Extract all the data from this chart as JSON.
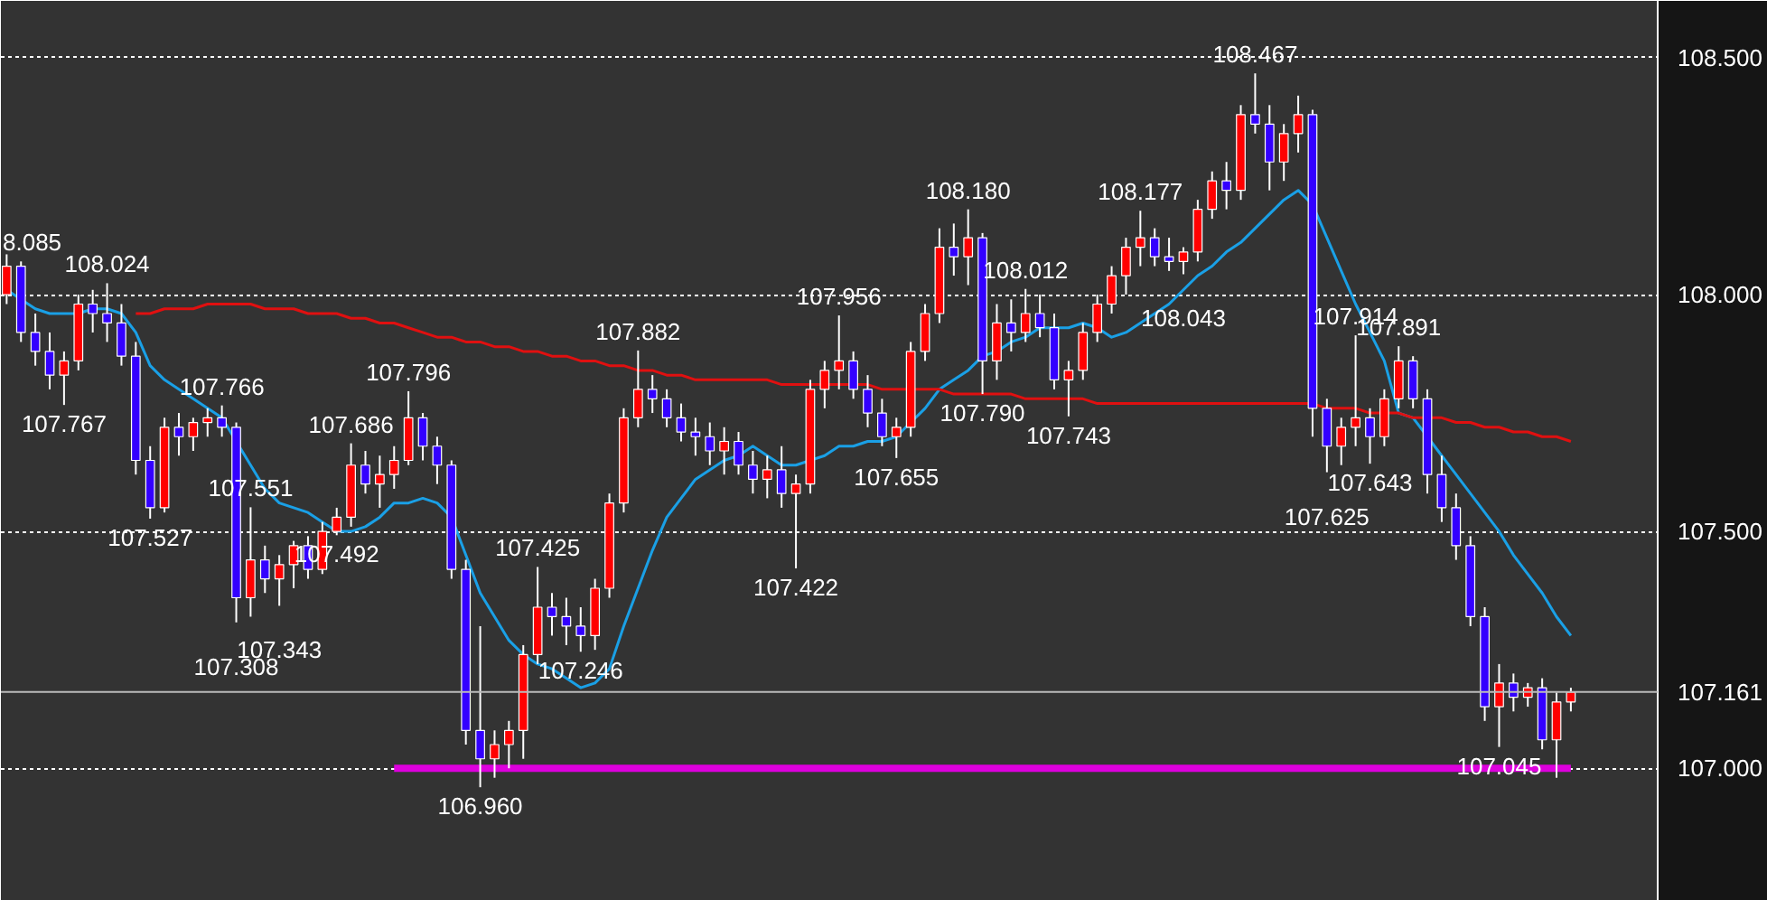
{
  "chart_data": {
    "type": "candlestick",
    "categories": [
      null,
      null,
      null,
      null,
      null,
      null,
      null,
      null,
      null,
      null,
      null,
      null,
      null,
      null,
      null,
      null,
      null,
      null,
      null,
      null,
      null,
      null,
      null,
      null,
      null,
      null,
      null,
      null,
      null,
      null,
      null,
      null,
      null,
      null,
      null,
      null,
      null,
      null,
      null,
      null,
      null,
      null,
      null,
      null,
      null,
      null,
      null,
      null,
      null,
      null,
      null,
      null,
      null,
      null,
      null,
      null,
      null,
      null,
      null,
      null,
      null,
      null,
      null,
      null,
      null,
      null,
      null,
      null,
      null,
      null,
      null,
      null,
      null,
      null,
      null,
      null,
      null,
      null,
      null,
      null,
      null,
      null,
      null,
      null,
      null,
      null,
      null,
      null,
      null,
      null,
      null,
      null,
      null,
      null,
      null,
      null,
      null,
      null,
      null,
      null,
      null,
      null,
      null,
      null,
      null,
      null,
      null,
      null,
      null,
      null
    ],
    "ohlc": [
      [
        108.0,
        108.085,
        107.98,
        108.06
      ],
      [
        108.06,
        108.07,
        107.9,
        107.92
      ],
      [
        107.92,
        107.96,
        107.85,
        107.88
      ],
      [
        107.88,
        107.92,
        107.8,
        107.83
      ],
      [
        107.83,
        107.88,
        107.767,
        107.86
      ],
      [
        107.86,
        108.0,
        107.84,
        107.98
      ],
      [
        107.98,
        108.01,
        107.92,
        107.96
      ],
      [
        107.96,
        108.024,
        107.9,
        107.94
      ],
      [
        107.94,
        107.98,
        107.85,
        107.87
      ],
      [
        107.87,
        107.9,
        107.62,
        107.65
      ],
      [
        107.65,
        107.68,
        107.527,
        107.55
      ],
      [
        107.55,
        107.74,
        107.54,
        107.72
      ],
      [
        107.72,
        107.75,
        107.66,
        107.7
      ],
      [
        107.7,
        107.74,
        107.67,
        107.73
      ],
      [
        107.73,
        107.76,
        107.7,
        107.74
      ],
      [
        107.74,
        107.766,
        107.7,
        107.72
      ],
      [
        107.72,
        107.73,
        107.308,
        107.36
      ],
      [
        107.36,
        107.551,
        107.32,
        107.44
      ],
      [
        107.44,
        107.47,
        107.37,
        107.4
      ],
      [
        107.4,
        107.45,
        107.343,
        107.43
      ],
      [
        107.43,
        107.48,
        107.38,
        107.47
      ],
      [
        107.47,
        107.49,
        107.4,
        107.42
      ],
      [
        107.42,
        107.52,
        107.41,
        107.5
      ],
      [
        107.5,
        107.55,
        107.492,
        107.53
      ],
      [
        107.53,
        107.686,
        107.51,
        107.64
      ],
      [
        107.64,
        107.67,
        107.58,
        107.6
      ],
      [
        107.6,
        107.66,
        107.55,
        107.62
      ],
      [
        107.62,
        107.68,
        107.59,
        107.65
      ],
      [
        107.65,
        107.796,
        107.64,
        107.74
      ],
      [
        107.74,
        107.75,
        107.65,
        107.68
      ],
      [
        107.68,
        107.7,
        107.6,
        107.64
      ],
      [
        107.64,
        107.65,
        107.4,
        107.42
      ],
      [
        107.42,
        107.44,
        107.05,
        107.08
      ],
      [
        107.08,
        107.3,
        106.96,
        107.02
      ],
      [
        107.02,
        107.08,
        106.98,
        107.05
      ],
      [
        107.05,
        107.1,
        107.0,
        107.08
      ],
      [
        107.08,
        107.26,
        107.02,
        107.24
      ],
      [
        107.24,
        107.425,
        107.22,
        107.34
      ],
      [
        107.34,
        107.37,
        107.28,
        107.32
      ],
      [
        107.32,
        107.36,
        107.26,
        107.3
      ],
      [
        107.3,
        107.34,
        107.246,
        107.28
      ],
      [
        107.28,
        107.4,
        107.25,
        107.38
      ],
      [
        107.38,
        107.58,
        107.36,
        107.56
      ],
      [
        107.56,
        107.76,
        107.54,
        107.74
      ],
      [
        107.74,
        107.882,
        107.72,
        107.8
      ],
      [
        107.8,
        107.83,
        107.75,
        107.78
      ],
      [
        107.78,
        107.8,
        107.72,
        107.74
      ],
      [
        107.74,
        107.77,
        107.69,
        107.71
      ],
      [
        107.71,
        107.74,
        107.66,
        107.7
      ],
      [
        107.7,
        107.73,
        107.64,
        107.67
      ],
      [
        107.67,
        107.72,
        107.62,
        107.69
      ],
      [
        107.69,
        107.71,
        107.62,
        107.64
      ],
      [
        107.64,
        107.67,
        107.58,
        107.61
      ],
      [
        107.61,
        107.66,
        107.57,
        107.63
      ],
      [
        107.63,
        107.68,
        107.55,
        107.58
      ],
      [
        107.58,
        107.62,
        107.422,
        107.6
      ],
      [
        107.6,
        107.82,
        107.58,
        107.8
      ],
      [
        107.8,
        107.86,
        107.76,
        107.84
      ],
      [
        107.84,
        107.956,
        107.8,
        107.86
      ],
      [
        107.86,
        107.88,
        107.78,
        107.8
      ],
      [
        107.8,
        107.83,
        107.72,
        107.75
      ],
      [
        107.75,
        107.78,
        107.68,
        107.7
      ],
      [
        107.7,
        107.74,
        107.655,
        107.72
      ],
      [
        107.72,
        107.9,
        107.7,
        107.88
      ],
      [
        107.88,
        107.98,
        107.86,
        107.96
      ],
      [
        107.96,
        108.14,
        107.94,
        108.1
      ],
      [
        108.1,
        108.15,
        108.04,
        108.08
      ],
      [
        108.08,
        108.18,
        108.02,
        108.12
      ],
      [
        108.12,
        108.13,
        107.79,
        107.86
      ],
      [
        107.86,
        107.98,
        107.82,
        107.94
      ],
      [
        107.94,
        107.99,
        107.88,
        107.92
      ],
      [
        107.92,
        108.012,
        107.9,
        107.96
      ],
      [
        107.96,
        108.0,
        107.91,
        107.93
      ],
      [
        107.93,
        107.96,
        107.8,
        107.82
      ],
      [
        107.82,
        107.86,
        107.743,
        107.84
      ],
      [
        107.84,
        107.94,
        107.82,
        107.92
      ],
      [
        107.92,
        108.0,
        107.9,
        107.98
      ],
      [
        107.98,
        108.06,
        107.96,
        108.04
      ],
      [
        108.04,
        108.12,
        108.0,
        108.1
      ],
      [
        108.1,
        108.177,
        108.06,
        108.12
      ],
      [
        108.12,
        108.14,
        108.06,
        108.08
      ],
      [
        108.08,
        108.12,
        108.05,
        108.07
      ],
      [
        108.07,
        108.1,
        108.043,
        108.09
      ],
      [
        108.09,
        108.2,
        108.07,
        108.18
      ],
      [
        108.18,
        108.26,
        108.16,
        108.24
      ],
      [
        108.24,
        108.28,
        108.18,
        108.22
      ],
      [
        108.22,
        108.4,
        108.2,
        108.38
      ],
      [
        108.38,
        108.467,
        108.34,
        108.36
      ],
      [
        108.36,
        108.4,
        108.22,
        108.28
      ],
      [
        108.28,
        108.36,
        108.24,
        108.34
      ],
      [
        108.34,
        108.42,
        108.3,
        108.38
      ],
      [
        108.38,
        108.39,
        107.7,
        107.76
      ],
      [
        107.76,
        107.78,
        107.625,
        107.68
      ],
      [
        107.68,
        107.74,
        107.64,
        107.72
      ],
      [
        107.72,
        107.914,
        107.68,
        107.74
      ],
      [
        107.74,
        107.76,
        107.643,
        107.7
      ],
      [
        107.7,
        107.8,
        107.68,
        107.78
      ],
      [
        107.78,
        107.891,
        107.76,
        107.86
      ],
      [
        107.86,
        107.87,
        107.76,
        107.78
      ],
      [
        107.78,
        107.8,
        107.58,
        107.62
      ],
      [
        107.62,
        107.66,
        107.52,
        107.55
      ],
      [
        107.55,
        107.58,
        107.44,
        107.47
      ],
      [
        107.47,
        107.49,
        107.3,
        107.32
      ],
      [
        107.32,
        107.34,
        107.1,
        107.13
      ],
      [
        107.13,
        107.22,
        107.045,
        107.18
      ],
      [
        107.18,
        107.2,
        107.12,
        107.15
      ],
      [
        107.15,
        107.18,
        107.13,
        107.17
      ],
      [
        107.17,
        107.19,
        107.04,
        107.06
      ],
      [
        107.06,
        107.16,
        106.98,
        107.14
      ],
      [
        107.14,
        107.17,
        107.12,
        107.161
      ]
    ],
    "colors": [
      "#ff0000",
      "#3300ff",
      "#3300ff",
      "#3300ff",
      "#ff0000",
      "#ff0000",
      "#3300ff",
      "#3300ff",
      "#3300ff",
      "#3300ff",
      "#3300ff",
      "#ff0000",
      "#3300ff",
      "#ff0000",
      "#ff0000",
      "#3300ff",
      "#3300ff",
      "#ff0000",
      "#3300ff",
      "#ff0000",
      "#ff0000",
      "#3300ff",
      "#ff0000",
      "#ff0000",
      "#ff0000",
      "#3300ff",
      "#ff0000",
      "#ff0000",
      "#ff0000",
      "#3300ff",
      "#3300ff",
      "#3300ff",
      "#3300ff",
      "#3300ff",
      "#ff0000",
      "#ff0000",
      "#ff0000",
      "#ff0000",
      "#3300ff",
      "#3300ff",
      "#3300ff",
      "#ff0000",
      "#ff0000",
      "#ff0000",
      "#ff0000",
      "#3300ff",
      "#3300ff",
      "#3300ff",
      "#3300ff",
      "#3300ff",
      "#ff0000",
      "#3300ff",
      "#3300ff",
      "#ff0000",
      "#3300ff",
      "#ff0000",
      "#ff0000",
      "#ff0000",
      "#ff0000",
      "#3300ff",
      "#3300ff",
      "#3300ff",
      "#ff0000",
      "#ff0000",
      "#ff0000",
      "#ff0000",
      "#3300ff",
      "#ff0000",
      "#3300ff",
      "#ff0000",
      "#3300ff",
      "#ff0000",
      "#3300ff",
      "#3300ff",
      "#ff0000",
      "#ff0000",
      "#ff0000",
      "#ff0000",
      "#ff0000",
      "#ff0000",
      "#3300ff",
      "#3300ff",
      "#ff0000",
      "#ff0000",
      "#ff0000",
      "#3300ff",
      "#ff0000",
      "#3300ff",
      "#3300ff",
      "#ff0000",
      "#ff0000",
      "#3300ff",
      "#3300ff",
      "#ff0000",
      "#ff0000",
      "#3300ff",
      "#ff0000",
      "#ff0000",
      "#3300ff",
      "#3300ff",
      "#3300ff",
      "#3300ff",
      "#3300ff",
      "#3300ff",
      "#ff0000",
      "#3300ff",
      "#ff0000",
      "#3300ff",
      "#ff0000",
      "#ff0000"
    ],
    "series": [
      {
        "type": "line",
        "color": "#1aa0e6",
        "values": [
          108.01,
          107.99,
          107.97,
          107.96,
          107.96,
          107.96,
          107.97,
          107.97,
          107.96,
          107.92,
          107.85,
          107.82,
          107.8,
          107.78,
          107.76,
          107.74,
          107.69,
          107.64,
          107.59,
          107.56,
          107.55,
          107.54,
          107.52,
          107.5,
          107.5,
          107.51,
          107.53,
          107.56,
          107.56,
          107.57,
          107.56,
          107.53,
          107.45,
          107.37,
          107.32,
          107.27,
          107.24,
          107.22,
          107.21,
          107.19,
          107.17,
          107.18,
          107.21,
          107.3,
          107.38,
          107.46,
          107.53,
          107.57,
          107.61,
          107.63,
          107.65,
          107.66,
          107.68,
          107.66,
          107.64,
          107.64,
          107.65,
          107.66,
          107.68,
          107.68,
          107.69,
          107.69,
          107.7,
          107.73,
          107.76,
          107.8,
          107.82,
          107.84,
          107.87,
          107.88,
          107.9,
          107.91,
          107.93,
          107.93,
          107.93,
          107.94,
          107.93,
          107.91,
          107.92,
          107.94,
          107.96,
          107.98,
          108.01,
          108.04,
          108.06,
          108.09,
          108.11,
          108.14,
          108.17,
          108.2,
          108.22,
          108.19,
          108.12,
          108.05,
          107.98,
          107.92,
          107.86,
          107.75,
          107.74,
          107.7,
          107.66,
          107.62,
          107.58,
          107.54,
          107.5,
          107.45,
          107.41,
          107.37,
          107.32,
          107.28
        ]
      },
      {
        "type": "line",
        "color": "#e01010",
        "values": [
          null,
          null,
          null,
          null,
          null,
          null,
          null,
          null,
          null,
          107.96,
          107.96,
          107.97,
          107.97,
          107.97,
          107.98,
          107.98,
          107.98,
          107.98,
          107.97,
          107.97,
          107.97,
          107.96,
          107.96,
          107.96,
          107.95,
          107.95,
          107.94,
          107.94,
          107.93,
          107.92,
          107.91,
          107.91,
          107.9,
          107.9,
          107.89,
          107.89,
          107.88,
          107.88,
          107.87,
          107.87,
          107.86,
          107.86,
          107.85,
          107.85,
          107.84,
          107.84,
          107.83,
          107.83,
          107.82,
          107.82,
          107.82,
          107.82,
          107.82,
          107.82,
          107.81,
          107.81,
          107.81,
          107.81,
          107.81,
          107.81,
          107.81,
          107.8,
          107.8,
          107.8,
          107.8,
          107.8,
          107.79,
          107.79,
          107.79,
          107.79,
          107.79,
          107.78,
          107.78,
          107.78,
          107.78,
          107.78,
          107.77,
          107.77,
          107.77,
          107.77,
          107.77,
          107.77,
          107.77,
          107.77,
          107.77,
          107.77,
          107.77,
          107.77,
          107.77,
          107.77,
          107.77,
          107.77,
          107.76,
          107.76,
          107.76,
          107.75,
          107.75,
          107.75,
          107.74,
          107.74,
          107.74,
          107.73,
          107.73,
          107.72,
          107.72,
          107.71,
          107.71,
          107.7,
          107.7,
          107.69
        ]
      },
      {
        "type": "line",
        "color": "#dd00dd",
        "values": [
          null,
          null,
          null,
          null,
          null,
          null,
          null,
          null,
          null,
          null,
          null,
          null,
          null,
          null,
          null,
          null,
          null,
          null,
          null,
          null,
          null,
          null,
          null,
          null,
          null,
          null,
          null,
          107.0,
          107.0,
          107.0,
          107.0,
          107.0,
          107.0,
          107.0,
          107.0,
          107.0,
          107.0,
          107.0,
          107.0,
          107.0,
          107.0,
          107.0,
          107.0,
          107.0,
          107.0,
          107.0,
          107.0,
          107.0,
          107.0,
          107.0,
          107.0,
          107.0,
          107.0,
          107.0,
          107.0,
          107.0,
          107.0,
          107.0,
          107.0,
          107.0,
          107.0,
          107.0,
          107.0,
          107.0,
          107.0,
          107.0,
          107.0,
          107.0,
          107.0,
          107.0,
          107.0,
          107.0,
          107.0,
          107.0,
          107.0,
          107.0,
          107.0,
          107.0,
          107.0,
          107.0,
          107.0,
          107.0,
          107.0,
          107.0,
          107.0,
          107.0,
          107.0,
          107.0,
          107.0,
          107.0,
          107.0,
          107.0,
          107.0,
          107.0,
          107.0,
          107.0,
          107.0,
          107.0,
          107.0,
          107.0,
          107.0,
          107.0,
          107.0,
          107.0,
          107.0,
          107.0,
          107.0,
          107.0,
          107.0,
          107.0
        ]
      }
    ],
    "ref_lines": [
      {
        "axis": "y",
        "value": 107.161,
        "label": "107.161",
        "color": "#bbbbbb"
      }
    ],
    "annotations": [
      "8.085",
      {
        "text": "108.024",
        "y": 108.024
      },
      {
        "text": "107.767",
        "y": 107.767
      },
      {
        "text": "107.527",
        "y": 107.527
      },
      {
        "text": "107.766",
        "y": 107.766
      },
      {
        "text": "107.551",
        "y": 107.551
      },
      {
        "text": "107.308",
        "y": 107.308
      },
      {
        "text": "107.343",
        "y": 107.343
      },
      {
        "text": "107.492",
        "y": 107.492
      },
      {
        "text": "107.686",
        "y": 107.686
      },
      {
        "text": "107.796",
        "y": 107.796
      },
      {
        "text": "107.425",
        "y": 107.425
      },
      {
        "text": "106.960",
        "y": 106.96
      },
      {
        "text": "107.246",
        "y": 107.246
      },
      {
        "text": "107.882",
        "y": 107.882
      },
      {
        "text": "107.422",
        "y": 107.422
      },
      {
        "text": "107.956",
        "y": 107.956
      },
      {
        "text": "107.655",
        "y": 107.655
      },
      {
        "text": "108.180",
        "y": 108.18
      },
      {
        "text": "107.790",
        "y": 107.79
      },
      {
        "text": "108.012",
        "y": 108.012
      },
      {
        "text": "107.743",
        "y": 107.743
      },
      {
        "text": "108.177",
        "y": 108.177
      },
      {
        "text": "108.043",
        "y": 108.043
      },
      {
        "text": "108.467",
        "y": 108.467
      },
      {
        "text": "107.625",
        "y": 107.625
      },
      {
        "text": "107.914",
        "y": 107.914
      },
      {
        "text": "107.643",
        "y": 107.643
      },
      {
        "text": "107.891",
        "y": 107.891
      },
      {
        "text": "107.045",
        "y": 107.045
      }
    ],
    "ylim": [
      106.72,
      108.62
    ],
    "yticks": [
      {
        "value": 107.0,
        "label": "107.000"
      },
      {
        "value": 107.5,
        "label": "107.500"
      },
      {
        "value": 108.0,
        "label": "108.000"
      },
      {
        "value": 108.5,
        "label": "108.500"
      }
    ],
    "grid": "y",
    "tick_labels": "y"
  }
}
